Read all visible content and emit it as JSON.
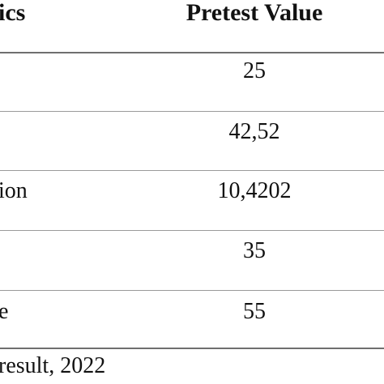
{
  "table": {
    "headers": [
      "ics",
      "Pretest Value"
    ],
    "rows": [
      {
        "label": "",
        "value": "25"
      },
      {
        "label": "",
        "value": "42,52"
      },
      {
        "label": "ion",
        "value": "10,4202"
      },
      {
        "label": "",
        "value": "35"
      },
      {
        "label": "e",
        "value": "55"
      }
    ]
  },
  "source": "result, 2022"
}
